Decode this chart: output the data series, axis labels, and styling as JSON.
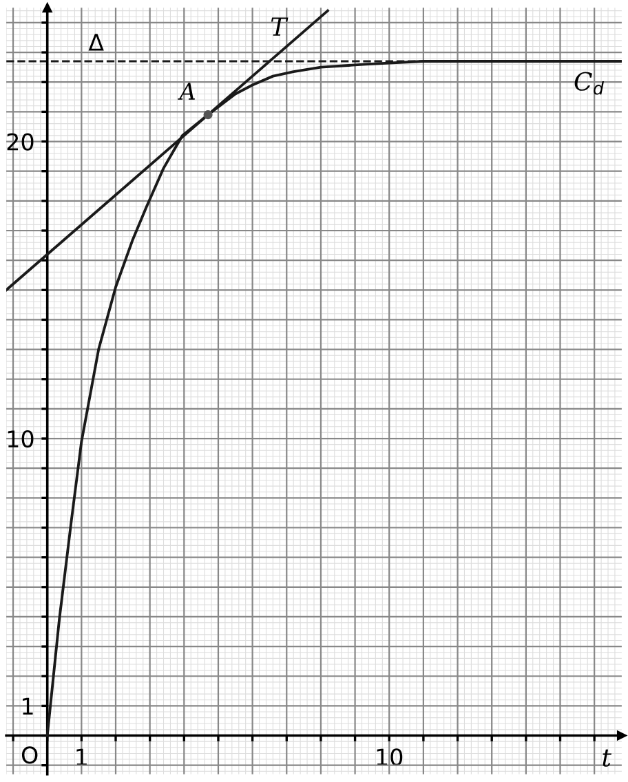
{
  "chart_data": {
    "type": "line",
    "xlabel": "t",
    "xlim": [
      -1.2,
      16.8
    ],
    "ylim": [
      -1.3,
      24.5
    ],
    "xticks": [
      {
        "value": -1,
        "label": null
      },
      {
        "value": 0,
        "label": null
      },
      1,
      {
        "value": 2,
        "label": null
      },
      {
        "value": 3,
        "label": null
      },
      {
        "value": 4,
        "label": null
      },
      {
        "value": 5,
        "label": null
      },
      {
        "value": 6,
        "label": null
      },
      {
        "value": 7,
        "label": null
      },
      {
        "value": 8,
        "label": null
      },
      {
        "value": 9,
        "label": null
      },
      10,
      {
        "value": 11,
        "label": null
      },
      {
        "value": 12,
        "label": null
      },
      {
        "value": 13,
        "label": null
      },
      {
        "value": 14,
        "label": null
      },
      {
        "value": 15,
        "label": null
      },
      {
        "value": 16,
        "label": null
      }
    ],
    "yticks": [
      {
        "value": -1,
        "label": null
      },
      {
        "value": 0,
        "label": null
      },
      1,
      {
        "value": 2,
        "label": null
      },
      {
        "value": 3,
        "label": null
      },
      {
        "value": 4,
        "label": null
      },
      {
        "value": 5,
        "label": null
      },
      {
        "value": 6,
        "label": null
      },
      {
        "value": 7,
        "label": null
      },
      {
        "value": 8,
        "label": null
      },
      {
        "value": 9,
        "label": null
      },
      10,
      {
        "value": 11,
        "label": null
      },
      {
        "value": 12,
        "label": null
      },
      {
        "value": 13,
        "label": null
      },
      {
        "value": 14,
        "label": null
      },
      {
        "value": 15,
        "label": null
      },
      {
        "value": 16,
        "label": null
      },
      {
        "value": 17,
        "label": null
      },
      {
        "value": 18,
        "label": null
      },
      {
        "value": 19,
        "label": null
      },
      20,
      {
        "value": 21,
        "label": null
      },
      {
        "value": 22,
        "label": null
      },
      {
        "value": 23,
        "label": null
      },
      {
        "value": 24,
        "label": null
      }
    ],
    "grid": true,
    "series": [
      {
        "name": "C$_{d}$",
        "color": "#1a1a1a",
        "x": [
          0,
          0.35,
          0.7,
          1.0,
          1.5,
          2.0,
          2.5,
          2.9,
          3.4,
          3.95,
          4.7,
          5.5,
          6.0,
          6.6,
          7.2,
          8.0,
          9.3,
          11.0,
          13.0,
          16.8
        ],
        "values": [
          0,
          3.9,
          7.2,
          9.9,
          13.0,
          15.1,
          16.7,
          17.8,
          19.1,
          20.2,
          20.9,
          21.6,
          21.9,
          22.2,
          22.35,
          22.5,
          22.6,
          22.7,
          22.7,
          22.7
        ]
      },
      {
        "name": "T",
        "type": "line",
        "color": "#1a1a1a",
        "x": [
          -1.2,
          8.2
        ],
        "values": [
          15.0,
          24.4
        ]
      },
      {
        "name": "A",
        "type": "scatter",
        "color": "#555555",
        "x": [
          4.7
        ],
        "values": [
          20.9
        ]
      }
    ],
    "ref_lines": [
      {
        "axis": "y",
        "value": 22.7,
        "label": "Δ",
        "line_style": "dashed",
        "color": "#1a1a1a"
      }
    ],
    "annotations": [
      {
        "text": "O",
        "x": 0,
        "y": 0
      }
    ]
  }
}
